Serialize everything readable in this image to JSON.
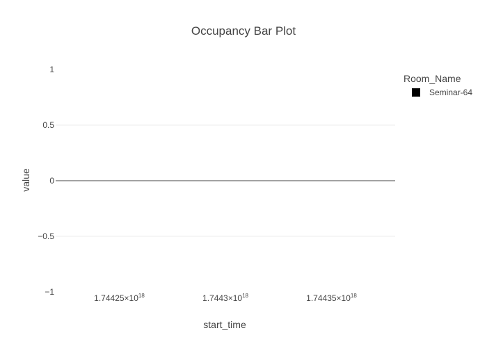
{
  "chart_data": {
    "type": "bar",
    "title": "Occupancy Bar Plot",
    "xlabel": "start_time",
    "ylabel": "value",
    "legend": {
      "title": "Room_Name",
      "placement": "top-right",
      "entries": [
        {
          "name": "Seminar-64",
          "color": "#000000"
        }
      ]
    },
    "ylim": [
      -1,
      1
    ],
    "yticks": [
      {
        "value": 1,
        "label": "1"
      },
      {
        "value": 0.5,
        "label": "0.5"
      },
      {
        "value": 0,
        "label": "0"
      },
      {
        "value": -0.5,
        "label": "−0.5"
      },
      {
        "value": -1,
        "label": "−1"
      }
    ],
    "xlim": [
      1.74422e+18,
      1.74438e+18
    ],
    "xticks": [
      {
        "value": 1.74425e+18,
        "mantissa": "1.74425",
        "exponent": "18"
      },
      {
        "value": 1.7443e+18,
        "mantissa": "1.7443",
        "exponent": "18"
      },
      {
        "value": 1.74435e+18,
        "mantissa": "1.74435",
        "exponent": "18"
      }
    ],
    "times_sign": "×10",
    "grid": true,
    "zeroline": true,
    "series": [
      {
        "name": "Seminar-64",
        "x": [],
        "values": []
      }
    ],
    "colors": {
      "grid": "#eeeeee",
      "zeroline": "#444444",
      "text": "#444444",
      "bar": "#000000"
    }
  }
}
